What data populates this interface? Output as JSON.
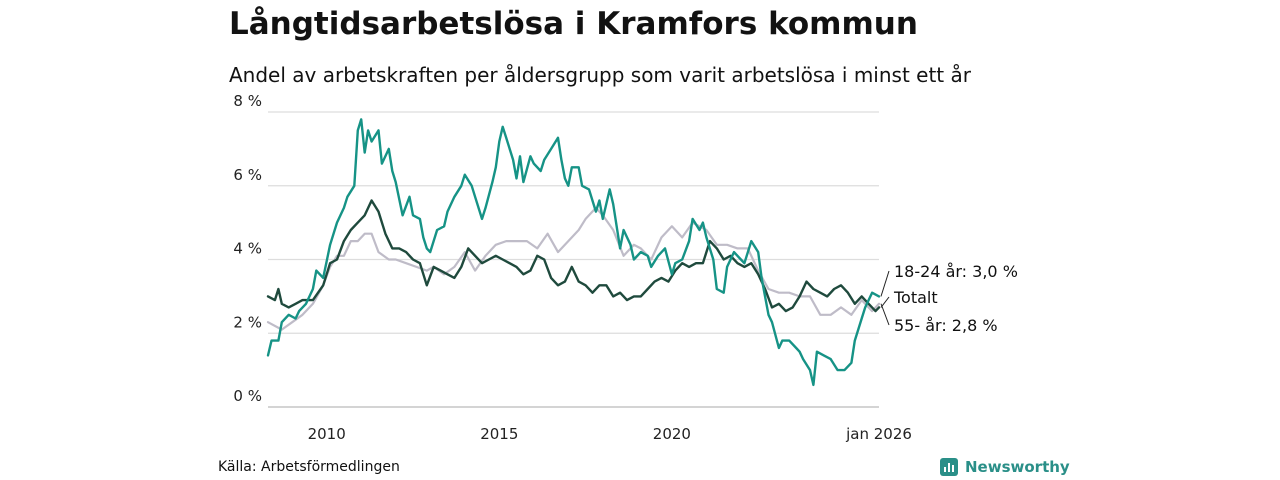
{
  "title": "Långtidsarbetslösa i Kramfors kommun",
  "subtitle": "Andel av arbetskraften per åldersgrupp som varit arbetslösa i minst ett år",
  "source": "Källa: Arbetsförmedlingen",
  "brand": {
    "name": "Newsworthy",
    "icon": "newsworthy-logo-icon"
  },
  "colors": {
    "young": "#169386",
    "total": "#1f4a3d",
    "old": "#bfbcc8",
    "grid": "#dddddd",
    "brand": "#2a8f88"
  },
  "chart_data": {
    "type": "line",
    "title": "Långtidsarbetslösa i Kramfors kommun",
    "xlabel": "",
    "ylabel": "",
    "xlim": [
      2008.3,
      2026.0
    ],
    "ylim": [
      0,
      8
    ],
    "yticks": [
      0,
      2,
      4,
      6,
      8
    ],
    "ytick_labels": [
      "0 %",
      "2 %",
      "4 %",
      "6 %",
      "8 %"
    ],
    "xticks": [
      2010,
      2015,
      2020,
      2026.0
    ],
    "xtick_labels": [
      "2010",
      "2015",
      "2020",
      "jan 2026"
    ],
    "grid": true,
    "series": [
      {
        "key": "old",
        "name": "55- år",
        "end_label": "55- år: 2,8 %",
        "points": [
          [
            2008.3,
            2.3
          ],
          [
            2008.7,
            2.1
          ],
          [
            2009.0,
            2.3
          ],
          [
            2009.3,
            2.5
          ],
          [
            2009.6,
            2.8
          ],
          [
            2009.9,
            3.3
          ],
          [
            2010.1,
            3.8
          ],
          [
            2010.3,
            4.1
          ],
          [
            2010.5,
            4.1
          ],
          [
            2010.7,
            4.5
          ],
          [
            2010.9,
            4.5
          ],
          [
            2011.1,
            4.7
          ],
          [
            2011.3,
            4.7
          ],
          [
            2011.5,
            4.2
          ],
          [
            2011.8,
            4.0
          ],
          [
            2012.0,
            4.0
          ],
          [
            2012.3,
            3.9
          ],
          [
            2012.6,
            3.8
          ],
          [
            2012.9,
            3.7
          ],
          [
            2013.1,
            3.8
          ],
          [
            2013.4,
            3.6
          ],
          [
            2013.7,
            3.8
          ],
          [
            2014.0,
            4.2
          ],
          [
            2014.3,
            3.7
          ],
          [
            2014.6,
            4.1
          ],
          [
            2014.9,
            4.4
          ],
          [
            2015.2,
            4.5
          ],
          [
            2015.5,
            4.5
          ],
          [
            2015.8,
            4.5
          ],
          [
            2016.1,
            4.3
          ],
          [
            2016.4,
            4.7
          ],
          [
            2016.7,
            4.2
          ],
          [
            2017.0,
            4.5
          ],
          [
            2017.3,
            4.8
          ],
          [
            2017.5,
            5.1
          ],
          [
            2017.8,
            5.4
          ],
          [
            2018.0,
            5.2
          ],
          [
            2018.3,
            4.8
          ],
          [
            2018.6,
            4.1
          ],
          [
            2018.9,
            4.4
          ],
          [
            2019.1,
            4.3
          ],
          [
            2019.4,
            4.0
          ],
          [
            2019.7,
            4.6
          ],
          [
            2020.0,
            4.9
          ],
          [
            2020.3,
            4.6
          ],
          [
            2020.6,
            5.0
          ],
          [
            2020.8,
            4.9
          ],
          [
            2021.0,
            4.8
          ],
          [
            2021.3,
            4.4
          ],
          [
            2021.6,
            4.4
          ],
          [
            2021.9,
            4.3
          ],
          [
            2022.2,
            4.3
          ],
          [
            2022.5,
            3.7
          ],
          [
            2022.8,
            3.2
          ],
          [
            2023.1,
            3.1
          ],
          [
            2023.4,
            3.1
          ],
          [
            2023.7,
            3.0
          ],
          [
            2024.0,
            3.0
          ],
          [
            2024.3,
            2.5
          ],
          [
            2024.6,
            2.5
          ],
          [
            2024.9,
            2.7
          ],
          [
            2025.2,
            2.5
          ],
          [
            2025.5,
            2.9
          ],
          [
            2025.8,
            2.6
          ],
          [
            2026.0,
            2.8
          ]
        ]
      },
      {
        "key": "total",
        "name": "Totalt",
        "end_label": "Totalt",
        "points": [
          [
            2008.3,
            3.0
          ],
          [
            2008.5,
            2.9
          ],
          [
            2008.6,
            3.2
          ],
          [
            2008.7,
            2.8
          ],
          [
            2008.9,
            2.7
          ],
          [
            2009.1,
            2.8
          ],
          [
            2009.3,
            2.9
          ],
          [
            2009.6,
            2.9
          ],
          [
            2009.9,
            3.3
          ],
          [
            2010.1,
            3.9
          ],
          [
            2010.3,
            4.0
          ],
          [
            2010.5,
            4.5
          ],
          [
            2010.7,
            4.8
          ],
          [
            2010.9,
            5.0
          ],
          [
            2011.1,
            5.2
          ],
          [
            2011.3,
            5.6
          ],
          [
            2011.5,
            5.3
          ],
          [
            2011.7,
            4.7
          ],
          [
            2011.9,
            4.3
          ],
          [
            2012.1,
            4.3
          ],
          [
            2012.3,
            4.2
          ],
          [
            2012.5,
            4.0
          ],
          [
            2012.7,
            3.9
          ],
          [
            2012.9,
            3.3
          ],
          [
            2013.1,
            3.8
          ],
          [
            2013.3,
            3.7
          ],
          [
            2013.5,
            3.6
          ],
          [
            2013.7,
            3.5
          ],
          [
            2013.9,
            3.8
          ],
          [
            2014.1,
            4.3
          ],
          [
            2014.3,
            4.1
          ],
          [
            2014.5,
            3.9
          ],
          [
            2014.7,
            4.0
          ],
          [
            2014.9,
            4.1
          ],
          [
            2015.1,
            4.0
          ],
          [
            2015.3,
            3.9
          ],
          [
            2015.5,
            3.8
          ],
          [
            2015.7,
            3.6
          ],
          [
            2015.9,
            3.7
          ],
          [
            2016.1,
            4.1
          ],
          [
            2016.3,
            4.0
          ],
          [
            2016.5,
            3.5
          ],
          [
            2016.7,
            3.3
          ],
          [
            2016.9,
            3.4
          ],
          [
            2017.1,
            3.8
          ],
          [
            2017.3,
            3.4
          ],
          [
            2017.5,
            3.3
          ],
          [
            2017.7,
            3.1
          ],
          [
            2017.9,
            3.3
          ],
          [
            2018.1,
            3.3
          ],
          [
            2018.3,
            3.0
          ],
          [
            2018.5,
            3.1
          ],
          [
            2018.7,
            2.9
          ],
          [
            2018.9,
            3.0
          ],
          [
            2019.1,
            3.0
          ],
          [
            2019.3,
            3.2
          ],
          [
            2019.5,
            3.4
          ],
          [
            2019.7,
            3.5
          ],
          [
            2019.9,
            3.4
          ],
          [
            2020.1,
            3.7
          ],
          [
            2020.3,
            3.9
          ],
          [
            2020.5,
            3.8
          ],
          [
            2020.7,
            3.9
          ],
          [
            2020.9,
            3.9
          ],
          [
            2021.1,
            4.5
          ],
          [
            2021.3,
            4.3
          ],
          [
            2021.5,
            4.0
          ],
          [
            2021.7,
            4.1
          ],
          [
            2021.9,
            3.9
          ],
          [
            2022.1,
            3.8
          ],
          [
            2022.3,
            3.9
          ],
          [
            2022.5,
            3.6
          ],
          [
            2022.7,
            3.2
          ],
          [
            2022.9,
            2.7
          ],
          [
            2023.1,
            2.8
          ],
          [
            2023.3,
            2.6
          ],
          [
            2023.5,
            2.7
          ],
          [
            2023.7,
            3.0
          ],
          [
            2023.9,
            3.4
          ],
          [
            2024.1,
            3.2
          ],
          [
            2024.3,
            3.1
          ],
          [
            2024.5,
            3.0
          ],
          [
            2024.7,
            3.2
          ],
          [
            2024.9,
            3.3
          ],
          [
            2025.1,
            3.1
          ],
          [
            2025.3,
            2.8
          ],
          [
            2025.5,
            3.0
          ],
          [
            2025.7,
            2.8
          ],
          [
            2025.9,
            2.6
          ],
          [
            2026.0,
            2.7
          ]
        ]
      },
      {
        "key": "young",
        "name": "18-24 år",
        "end_label": "18-24 år: 3,0 %",
        "points": [
          [
            2008.3,
            1.4
          ],
          [
            2008.4,
            1.8
          ],
          [
            2008.6,
            1.8
          ],
          [
            2008.7,
            2.3
          ],
          [
            2008.9,
            2.5
          ],
          [
            2009.1,
            2.4
          ],
          [
            2009.2,
            2.6
          ],
          [
            2009.4,
            2.8
          ],
          [
            2009.6,
            3.2
          ],
          [
            2009.7,
            3.7
          ],
          [
            2009.9,
            3.5
          ],
          [
            2010.1,
            4.4
          ],
          [
            2010.3,
            5.0
          ],
          [
            2010.5,
            5.4
          ],
          [
            2010.6,
            5.7
          ],
          [
            2010.8,
            6.0
          ],
          [
            2010.9,
            7.5
          ],
          [
            2011.0,
            7.8
          ],
          [
            2011.1,
            6.9
          ],
          [
            2011.2,
            7.5
          ],
          [
            2011.3,
            7.2
          ],
          [
            2011.5,
            7.5
          ],
          [
            2011.6,
            6.6
          ],
          [
            2011.8,
            7.0
          ],
          [
            2011.9,
            6.4
          ],
          [
            2012.0,
            6.1
          ],
          [
            2012.2,
            5.2
          ],
          [
            2012.4,
            5.7
          ],
          [
            2012.5,
            5.2
          ],
          [
            2012.7,
            5.1
          ],
          [
            2012.8,
            4.6
          ],
          [
            2012.9,
            4.3
          ],
          [
            2013.0,
            4.2
          ],
          [
            2013.2,
            4.8
          ],
          [
            2013.4,
            4.9
          ],
          [
            2013.5,
            5.3
          ],
          [
            2013.7,
            5.7
          ],
          [
            2013.9,
            6.0
          ],
          [
            2014.0,
            6.3
          ],
          [
            2014.2,
            6.0
          ],
          [
            2014.3,
            5.7
          ],
          [
            2014.5,
            5.1
          ],
          [
            2014.6,
            5.4
          ],
          [
            2014.8,
            6.1
          ],
          [
            2014.9,
            6.5
          ],
          [
            2015.0,
            7.2
          ],
          [
            2015.1,
            7.6
          ],
          [
            2015.2,
            7.3
          ],
          [
            2015.4,
            6.7
          ],
          [
            2015.5,
            6.2
          ],
          [
            2015.6,
            6.8
          ],
          [
            2015.7,
            6.1
          ],
          [
            2015.9,
            6.8
          ],
          [
            2016.0,
            6.6
          ],
          [
            2016.2,
            6.4
          ],
          [
            2016.3,
            6.7
          ],
          [
            2016.5,
            7.0
          ],
          [
            2016.7,
            7.3
          ],
          [
            2016.8,
            6.7
          ],
          [
            2016.9,
            6.2
          ],
          [
            2017.0,
            6.0
          ],
          [
            2017.1,
            6.5
          ],
          [
            2017.3,
            6.5
          ],
          [
            2017.4,
            6.0
          ],
          [
            2017.6,
            5.9
          ],
          [
            2017.8,
            5.3
          ],
          [
            2017.9,
            5.6
          ],
          [
            2018.0,
            5.1
          ],
          [
            2018.2,
            5.9
          ],
          [
            2018.3,
            5.5
          ],
          [
            2018.5,
            4.3
          ],
          [
            2018.6,
            4.8
          ],
          [
            2018.8,
            4.4
          ],
          [
            2018.9,
            4.0
          ],
          [
            2019.1,
            4.2
          ],
          [
            2019.3,
            4.1
          ],
          [
            2019.4,
            3.8
          ],
          [
            2019.6,
            4.1
          ],
          [
            2019.8,
            4.3
          ],
          [
            2020.0,
            3.6
          ],
          [
            2020.1,
            3.9
          ],
          [
            2020.3,
            4.0
          ],
          [
            2020.5,
            4.5
          ],
          [
            2020.6,
            5.1
          ],
          [
            2020.8,
            4.8
          ],
          [
            2020.9,
            5.0
          ],
          [
            2021.0,
            4.6
          ],
          [
            2021.2,
            4.0
          ],
          [
            2021.3,
            3.2
          ],
          [
            2021.5,
            3.1
          ],
          [
            2021.6,
            3.8
          ],
          [
            2021.8,
            4.2
          ],
          [
            2022.0,
            4.0
          ],
          [
            2022.1,
            3.9
          ],
          [
            2022.3,
            4.5
          ],
          [
            2022.5,
            4.2
          ],
          [
            2022.6,
            3.5
          ],
          [
            2022.8,
            2.5
          ],
          [
            2022.9,
            2.3
          ],
          [
            2023.1,
            1.6
          ],
          [
            2023.2,
            1.8
          ],
          [
            2023.4,
            1.8
          ],
          [
            2023.6,
            1.6
          ],
          [
            2023.7,
            1.5
          ],
          [
            2023.8,
            1.3
          ],
          [
            2024.0,
            1.0
          ],
          [
            2024.1,
            0.6
          ],
          [
            2024.2,
            1.5
          ],
          [
            2024.4,
            1.4
          ],
          [
            2024.6,
            1.3
          ],
          [
            2024.8,
            1.0
          ],
          [
            2025.0,
            1.0
          ],
          [
            2025.2,
            1.2
          ],
          [
            2025.3,
            1.8
          ],
          [
            2025.5,
            2.4
          ],
          [
            2025.6,
            2.7
          ],
          [
            2025.8,
            3.1
          ],
          [
            2026.0,
            3.0
          ]
        ]
      }
    ]
  }
}
